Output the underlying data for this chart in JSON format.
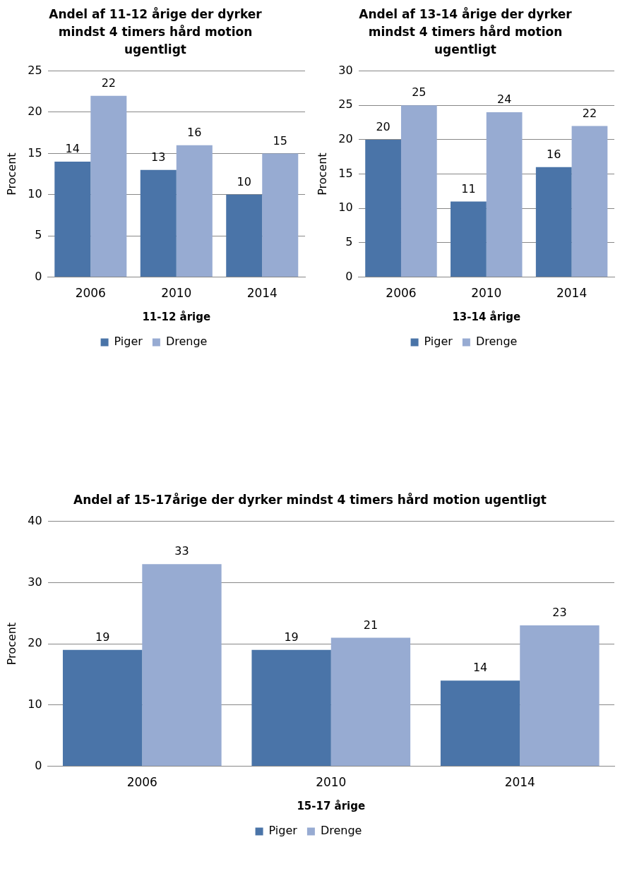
{
  "chart_data": [
    {
      "type": "bar",
      "title": "Andel af 11-12 årige der dyrker mindst 4 timers hård motion ugentligt",
      "xlabel": "11-12 årige",
      "ylabel": "Procent",
      "categories": [
        "2006",
        "2010",
        "2014"
      ],
      "series": [
        {
          "name": "Piger",
          "color": "#4a74a8",
          "values": [
            14,
            13,
            10
          ]
        },
        {
          "name": "Drenge",
          "color": "#97abd2",
          "values": [
            22,
            16,
            15
          ]
        }
      ],
      "ylim": [
        0,
        25
      ],
      "yticks": [
        0,
        5,
        10,
        15,
        20,
        25
      ],
      "grid": "y",
      "legend": "bottom",
      "data_labels": true
    },
    {
      "type": "bar",
      "title": "Andel af 13-14 årige der dyrker mindst 4 timers hård motion ugentligt",
      "xlabel": "13-14 årige",
      "ylabel": "Procent",
      "categories": [
        "2006",
        "2010",
        "2014"
      ],
      "series": [
        {
          "name": "Piger",
          "color": "#4a74a8",
          "values": [
            20,
            11,
            16
          ]
        },
        {
          "name": "Drenge",
          "color": "#97abd2",
          "values": [
            25,
            24,
            22
          ]
        }
      ],
      "ylim": [
        0,
        30
      ],
      "yticks": [
        0,
        5,
        10,
        15,
        20,
        25,
        30
      ],
      "grid": "y",
      "legend": "bottom",
      "data_labels": true
    },
    {
      "type": "bar",
      "title": "Andel af 15-17årige der dyrker mindst 4 timers hård motion ugentligt",
      "xlabel": "15-17 årige",
      "ylabel": "Procent",
      "categories": [
        "2006",
        "2010",
        "2014"
      ],
      "series": [
        {
          "name": "Piger",
          "color": "#4a74a8",
          "values": [
            19,
            19,
            14
          ]
        },
        {
          "name": "Drenge",
          "color": "#97abd2",
          "values": [
            33,
            21,
            23
          ]
        }
      ],
      "ylim": [
        0,
        40
      ],
      "yticks": [
        0,
        10,
        20,
        30,
        40
      ],
      "grid": "y",
      "legend": "bottom",
      "data_labels": true
    }
  ]
}
